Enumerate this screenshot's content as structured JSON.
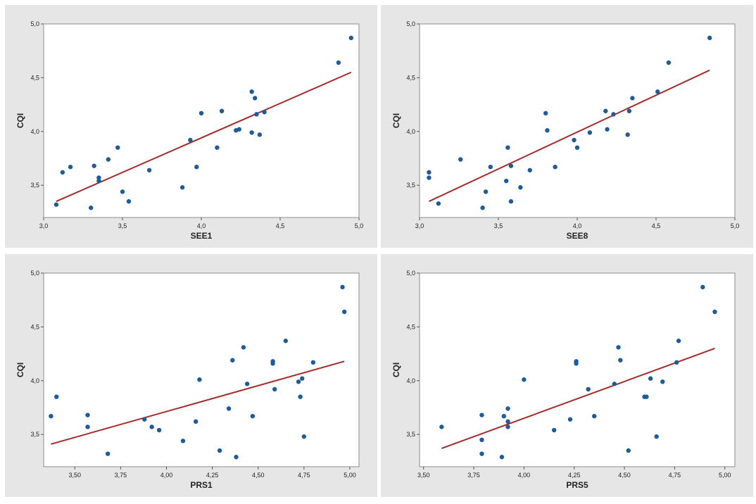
{
  "colors": {
    "point": "#1f5a99",
    "fit_line": "#a52a2a",
    "panel_background": "#e6e6e6",
    "plot_background": "#ffffff"
  },
  "chart_data": [
    {
      "type": "scatter",
      "xlabel": "SEE1",
      "ylabel": "CQI",
      "xlim": [
        3.0,
        5.0
      ],
      "ylim": [
        3.2,
        5.0
      ],
      "xticks": [
        "3,0",
        "3,5",
        "4,0",
        "4,5",
        "5,0"
      ],
      "xtick_values": [
        3.0,
        3.5,
        4.0,
        4.5,
        5.0
      ],
      "yticks": [
        "3,5",
        "4,0",
        "4,5",
        "5,0"
      ],
      "ytick_values": [
        3.5,
        4.0,
        4.5,
        5.0
      ],
      "grid": false,
      "x": [
        3.08,
        3.12,
        3.17,
        3.3,
        3.32,
        3.35,
        3.35,
        3.41,
        3.47,
        3.5,
        3.54,
        3.67,
        3.88,
        3.93,
        3.97,
        4.0,
        4.1,
        4.13,
        4.22,
        4.24,
        4.32,
        4.32,
        4.34,
        4.35,
        4.37,
        4.4,
        4.87,
        4.95
      ],
      "y": [
        3.32,
        3.62,
        3.67,
        3.29,
        3.68,
        3.57,
        3.54,
        3.74,
        3.85,
        3.44,
        3.35,
        3.64,
        3.48,
        3.92,
        3.67,
        4.17,
        3.85,
        4.19,
        4.01,
        4.02,
        4.37,
        3.99,
        4.31,
        4.16,
        3.97,
        4.18,
        4.64,
        4.87
      ],
      "fit": {
        "x": [
          3.08,
          4.95
        ],
        "y": [
          3.35,
          4.55
        ]
      }
    },
    {
      "type": "scatter",
      "xlabel": "SEE8",
      "ylabel": "CQI",
      "xlim": [
        3.0,
        5.0
      ],
      "ylim": [
        3.2,
        5.0
      ],
      "xticks": [
        "3,0",
        "3,5",
        "4,0",
        "4,5",
        "5,0"
      ],
      "xtick_values": [
        3.0,
        3.5,
        4.0,
        4.5,
        5.0
      ],
      "yticks": [
        "3,5",
        "4,0",
        "4,5",
        "5,0"
      ],
      "ytick_values": [
        3.5,
        4.0,
        4.5,
        5.0
      ],
      "grid": false,
      "x": [
        3.06,
        3.06,
        3.12,
        3.26,
        3.4,
        3.42,
        3.45,
        3.55,
        3.56,
        3.58,
        3.58,
        3.64,
        3.7,
        3.8,
        3.81,
        3.86,
        3.98,
        4.0,
        4.08,
        4.18,
        4.19,
        4.23,
        4.32,
        4.33,
        4.35,
        4.51,
        4.58,
        4.84
      ],
      "y": [
        3.62,
        3.57,
        3.33,
        3.74,
        3.29,
        3.44,
        3.67,
        3.54,
        3.85,
        3.68,
        3.35,
        3.48,
        3.64,
        4.17,
        4.01,
        3.67,
        3.92,
        3.85,
        3.99,
        4.19,
        4.02,
        4.16,
        3.97,
        4.19,
        4.31,
        4.37,
        4.64,
        4.87
      ],
      "fit": {
        "x": [
          3.06,
          4.84
        ],
        "y": [
          3.35,
          4.57
        ]
      }
    },
    {
      "type": "scatter",
      "xlabel": "PRS1",
      "ylabel": "CQI",
      "xlim": [
        3.33,
        5.05
      ],
      "ylim": [
        3.2,
        5.0
      ],
      "xticks": [
        "3,50",
        "3,75",
        "4,00",
        "4,25",
        "4,50",
        "4,75",
        "5,00"
      ],
      "xtick_values": [
        3.5,
        3.75,
        4.0,
        4.25,
        4.5,
        4.75,
        5.0
      ],
      "yticks": [
        "3,5",
        "4,0",
        "4,5",
        "5,0"
      ],
      "ytick_values": [
        3.5,
        4.0,
        4.5,
        5.0
      ],
      "grid": false,
      "x": [
        3.37,
        3.4,
        3.57,
        3.57,
        3.68,
        3.88,
        3.92,
        3.96,
        4.09,
        4.16,
        4.18,
        4.29,
        4.34,
        4.36,
        4.38,
        4.42,
        4.44,
        4.47,
        4.58,
        4.58,
        4.59,
        4.65,
        4.72,
        4.73,
        4.74,
        4.75,
        4.8,
        4.96,
        4.97
      ],
      "y": [
        3.67,
        3.85,
        3.57,
        3.68,
        3.32,
        3.64,
        3.57,
        3.54,
        3.44,
        3.62,
        4.01,
        3.35,
        3.74,
        4.19,
        3.29,
        4.31,
        3.97,
        3.67,
        4.16,
        4.18,
        3.92,
        4.37,
        3.99,
        3.85,
        4.02,
        3.48,
        4.17,
        4.87,
        4.64
      ],
      "fit": {
        "x": [
          3.37,
          4.97
        ],
        "y": [
          3.41,
          4.18
        ]
      }
    },
    {
      "type": "scatter",
      "xlabel": "PRS5",
      "ylabel": "CQI",
      "xlim": [
        3.48,
        5.05
      ],
      "ylim": [
        3.2,
        5.0
      ],
      "xticks": [
        "3,50",
        "3,75",
        "4,00",
        "4,25",
        "4,50",
        "4,75",
        "5,00"
      ],
      "xtick_values": [
        3.5,
        3.75,
        4.0,
        4.25,
        4.5,
        4.75,
        5.0
      ],
      "yticks": [
        "3,5",
        "4,0",
        "4,5",
        "5,0"
      ],
      "ytick_values": [
        3.5,
        4.0,
        4.5,
        5.0
      ],
      "grid": false,
      "x": [
        3.59,
        3.79,
        3.79,
        3.79,
        3.89,
        3.9,
        3.92,
        3.92,
        3.92,
        4.0,
        4.15,
        4.23,
        4.26,
        4.26,
        4.32,
        4.35,
        4.45,
        4.47,
        4.48,
        4.52,
        4.6,
        4.61,
        4.63,
        4.66,
        4.69,
        4.76,
        4.77,
        4.89,
        4.95
      ],
      "y": [
        3.57,
        3.68,
        3.45,
        3.32,
        3.29,
        3.67,
        3.74,
        3.62,
        3.57,
        4.01,
        3.54,
        3.64,
        4.16,
        4.18,
        3.92,
        3.67,
        3.97,
        4.31,
        4.19,
        3.35,
        3.85,
        3.85,
        4.02,
        3.48,
        3.99,
        4.17,
        4.37,
        4.87,
        4.64
      ],
      "fit": {
        "x": [
          3.59,
          4.95
        ],
        "y": [
          3.37,
          4.3
        ]
      }
    }
  ]
}
